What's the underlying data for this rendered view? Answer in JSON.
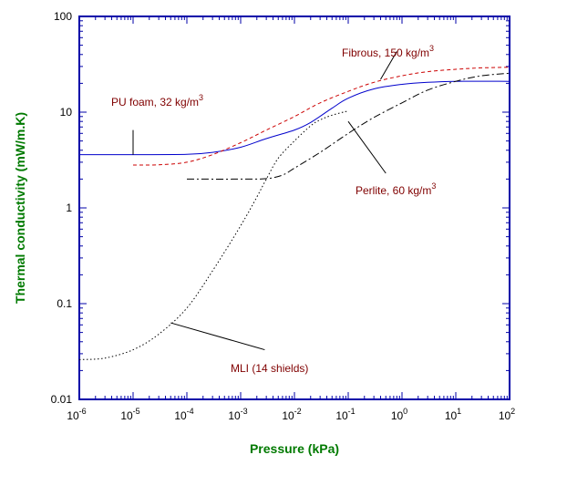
{
  "chart_data": {
    "type": "line",
    "title": "",
    "xlabel": "Pressure (kPa)",
    "ylabel": "Thermal conductivity (mW/m.K)",
    "x_scale": "log",
    "y_scale": "log",
    "xlim": [
      1e-06,
      100
    ],
    "ylim": [
      0.01,
      100
    ],
    "x_ticks": [
      {
        "base": "10",
        "exp": "-6",
        "value": 1e-06
      },
      {
        "base": "10",
        "exp": "-5",
        "value": 1e-05
      },
      {
        "base": "10",
        "exp": "-4",
        "value": 0.0001
      },
      {
        "base": "10",
        "exp": "-3",
        "value": 0.001
      },
      {
        "base": "10",
        "exp": "-2",
        "value": 0.01
      },
      {
        "base": "10",
        "exp": "-1",
        "value": 0.1
      },
      {
        "base": "10",
        "exp": "0",
        "value": 1
      },
      {
        "base": "10",
        "exp": "1",
        "value": 10
      },
      {
        "base": "10",
        "exp": "2",
        "value": 100
      }
    ],
    "y_ticks": [
      {
        "label": "100",
        "value": 100
      },
      {
        "label": "10",
        "value": 10
      },
      {
        "label": "1",
        "value": 1
      },
      {
        "label": "0.1",
        "value": 0.1
      },
      {
        "label": "0.01",
        "value": 0.01
      }
    ],
    "grid": false,
    "legend": "none",
    "colors": {
      "frame": "#0000a8",
      "axis_title": "#007a00",
      "annotation": "#800000",
      "pu_foam": "#0000cc",
      "fibrous": "#cc0000",
      "perlite": "#000000",
      "mli": "#000000"
    },
    "series": [
      {
        "key": "pu_foam",
        "dash": "solid",
        "points": [
          [
            1e-06,
            3.6
          ],
          [
            1e-05,
            3.6
          ],
          [
            0.0001,
            3.62
          ],
          [
            0.0003,
            3.8
          ],
          [
            0.001,
            4.3
          ],
          [
            0.003,
            5.3
          ],
          [
            0.01,
            6.5
          ],
          [
            0.02,
            7.8
          ],
          [
            0.05,
            11
          ],
          [
            0.1,
            14
          ],
          [
            0.3,
            17.5
          ],
          [
            1,
            19.5
          ],
          [
            3,
            20.5
          ],
          [
            10,
            21
          ],
          [
            100,
            21
          ]
        ]
      },
      {
        "key": "fibrous",
        "dash": "4,3",
        "points": [
          [
            1e-05,
            2.8
          ],
          [
            3e-05,
            2.82
          ],
          [
            0.0001,
            3
          ],
          [
            0.0003,
            3.6
          ],
          [
            0.001,
            4.8
          ],
          [
            0.003,
            6.5
          ],
          [
            0.01,
            9
          ],
          [
            0.03,
            12.5
          ],
          [
            0.1,
            16.5
          ],
          [
            0.3,
            20.5
          ],
          [
            1,
            24
          ],
          [
            3,
            26.5
          ],
          [
            10,
            28
          ],
          [
            30,
            29
          ],
          [
            100,
            29.5
          ]
        ]
      },
      {
        "key": "perlite",
        "dash": "8,3,2,3",
        "points": [
          [
            0.0001,
            2
          ],
          [
            0.001,
            2
          ],
          [
            0.003,
            2.02
          ],
          [
            0.006,
            2.2
          ],
          [
            0.01,
            2.6
          ],
          [
            0.03,
            3.8
          ],
          [
            0.1,
            6
          ],
          [
            0.3,
            8.8
          ],
          [
            1,
            12.5
          ],
          [
            3,
            17
          ],
          [
            10,
            21
          ],
          [
            30,
            24
          ],
          [
            100,
            25.5
          ]
        ]
      },
      {
        "key": "mli",
        "dash": "1.5,2.5",
        "points": [
          [
            1e-06,
            0.026
          ],
          [
            3e-06,
            0.027
          ],
          [
            1e-05,
            0.033
          ],
          [
            3e-05,
            0.048
          ],
          [
            0.0001,
            0.09
          ],
          [
            0.0003,
            0.22
          ],
          [
            0.001,
            0.65
          ],
          [
            0.002,
            1.3
          ],
          [
            0.003,
            2
          ],
          [
            0.005,
            3.3
          ],
          [
            0.01,
            5
          ],
          [
            0.02,
            7.2
          ],
          [
            0.03,
            8.3
          ],
          [
            0.05,
            9.3
          ],
          [
            0.1,
            10.3
          ]
        ]
      }
    ],
    "annotations": [
      {
        "key": "pu_foam",
        "text": "PU foam, 32 kg/m",
        "sup": "3",
        "leader_from": [
          1e-05,
          6.5
        ],
        "leader_to": [
          1e-05,
          3.6
        ]
      },
      {
        "key": "fibrous",
        "text": "Fibrous, 150 kg/m",
        "sup": "3",
        "leader_from": [
          0.8,
          43
        ],
        "leader_to": [
          0.4,
          22
        ]
      },
      {
        "key": "perlite",
        "text": "Perlite, 60 kg/m",
        "sup": "3",
        "leader_from": [
          0.5,
          2.3
        ],
        "leader_to": [
          0.1,
          8
        ]
      },
      {
        "key": "mli",
        "text": "MLI (14 shields)",
        "sup": "",
        "leader_from": [
          0.0028,
          0.033
        ],
        "leader_to": [
          5e-05,
          0.063
        ]
      }
    ]
  }
}
